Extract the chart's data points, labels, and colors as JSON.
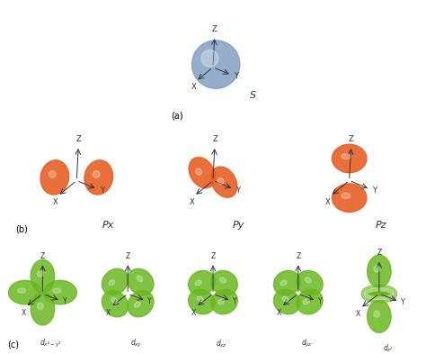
{
  "background_color": "#ffffff",
  "s_orbital_color": "#7a9bbf",
  "p_orbital_color": "#e85c20",
  "d_orbital_color": "#6ab820",
  "axis_color": "#333333",
  "label_color": "#333333",
  "s_label": "S",
  "p_labels": [
    "Px",
    "Py",
    "Pz"
  ],
  "d_labels": [
    "d_{x^2-y^2}",
    "d_{xy}",
    "d_{xz}",
    "d_{yz}",
    "d_{z^2}"
  ],
  "section_labels": [
    "(a)",
    "(b)",
    "(c)"
  ],
  "title_fontsize": 7,
  "label_fontsize": 7,
  "axis_label_fontsize": 6
}
